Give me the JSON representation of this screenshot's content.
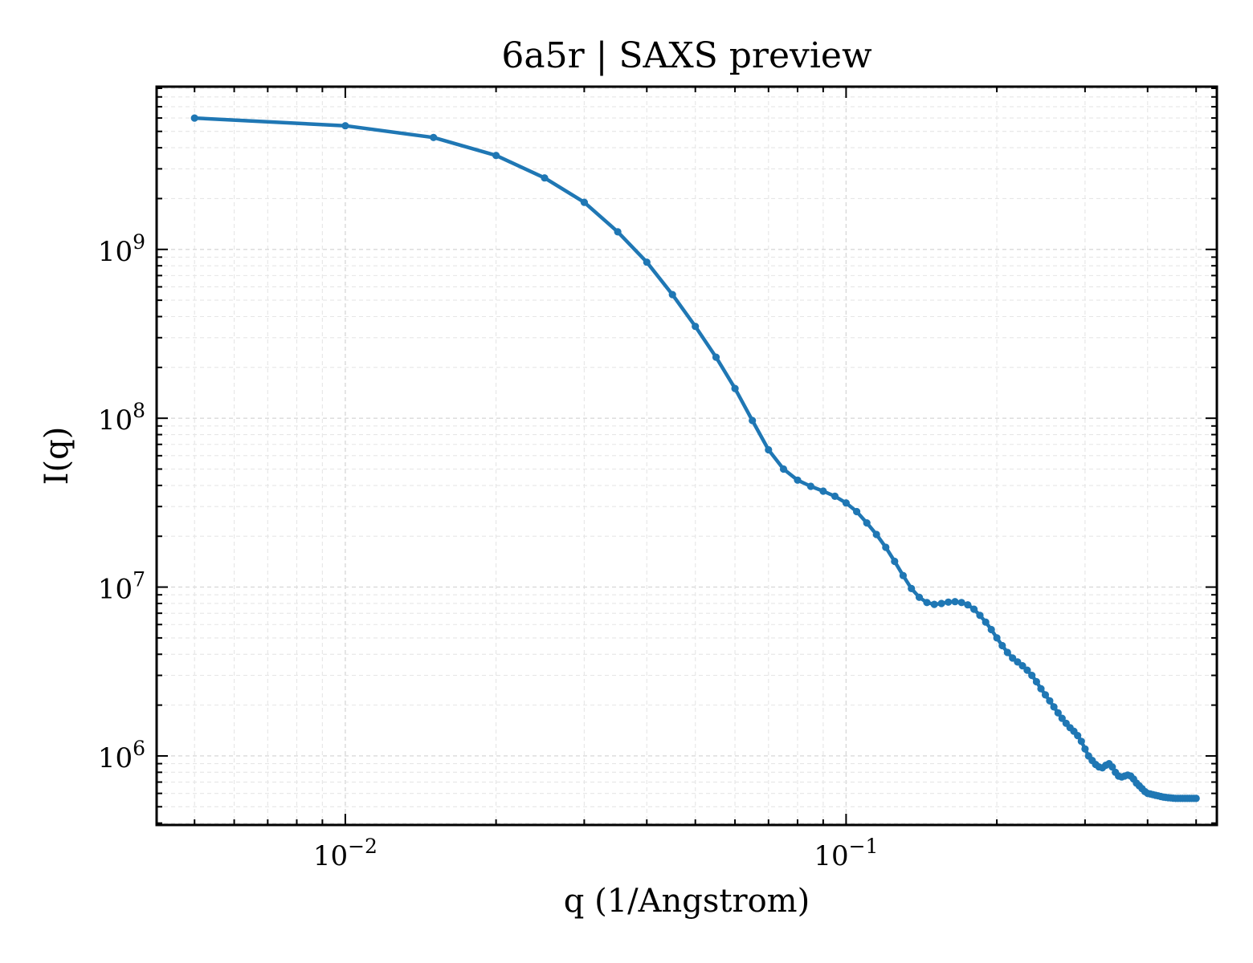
{
  "chart_data": {
    "type": "line",
    "title": "6a5r | SAXS preview",
    "xlabel": "q (1/Angstrom)",
    "ylabel": "I(q)",
    "xscale": "log",
    "yscale": "log",
    "xlim": [
      0.0042,
      0.55
    ],
    "ylim": [
      390000,
      9200000000
    ],
    "grid": true,
    "marker": "circle",
    "color": "#1f77b4",
    "xticks": [
      {
        "value": 0.01,
        "base": "10",
        "exp": "−2"
      },
      {
        "value": 0.1,
        "base": "10",
        "exp": "−1"
      }
    ],
    "yticks": [
      {
        "value": 1000000,
        "base": "10",
        "exp": "6"
      },
      {
        "value": 10000000,
        "base": "10",
        "exp": "7"
      },
      {
        "value": 100000000,
        "base": "10",
        "exp": "8"
      },
      {
        "value": 1000000000,
        "base": "10",
        "exp": "9"
      }
    ],
    "series": [
      {
        "x": [
          0.005,
          0.01,
          0.015,
          0.02,
          0.025,
          0.03,
          0.035,
          0.04,
          0.045,
          0.05,
          0.055,
          0.06,
          0.065,
          0.07,
          0.075,
          0.08,
          0.085,
          0.09,
          0.095,
          0.1,
          0.105,
          0.11,
          0.115,
          0.12,
          0.125,
          0.13,
          0.135,
          0.14,
          0.145,
          0.15,
          0.155,
          0.16,
          0.165,
          0.17,
          0.175,
          0.18,
          0.185,
          0.19,
          0.195,
          0.2,
          0.205,
          0.21,
          0.215,
          0.22,
          0.225,
          0.23,
          0.235,
          0.24,
          0.245,
          0.25,
          0.255,
          0.26,
          0.265,
          0.27,
          0.275,
          0.28,
          0.285,
          0.29,
          0.295,
          0.3,
          0.305,
          0.31,
          0.315,
          0.32,
          0.325,
          0.33,
          0.335,
          0.34,
          0.345,
          0.35,
          0.355,
          0.36,
          0.365,
          0.37,
          0.375,
          0.38,
          0.385,
          0.39,
          0.395,
          0.4,
          0.405,
          0.41,
          0.415,
          0.42,
          0.425,
          0.43,
          0.435,
          0.44,
          0.445,
          0.45,
          0.455,
          0.46,
          0.465,
          0.47,
          0.475,
          0.48,
          0.485,
          0.49,
          0.495,
          0.5
        ],
        "y": [
          6000000000.0,
          5400000000.0,
          4600000000.0,
          3600000000.0,
          2650000000.0,
          1900000000.0,
          1270000000.0,
          840000000.0,
          540000000.0,
          350000000.0,
          230000000.0,
          150000000.0,
          97000000.0,
          65000000.0,
          50000000.0,
          43000000.0,
          39500000.0,
          37000000.0,
          34500000.0,
          31500000.0,
          28000000.0,
          24000000.0,
          20500000.0,
          17200000.0,
          14200000.0,
          11700000.0,
          9800000.0,
          8700000.0,
          8100000.0,
          7900000.0,
          8000000.0,
          8150000.0,
          8200000.0,
          8100000.0,
          7850000.0,
          7400000.0,
          6800000.0,
          6200000.0,
          5600000.0,
          5000000.0,
          4500000.0,
          4100000.0,
          3800000.0,
          3600000.0,
          3420000.0,
          3220000.0,
          3000000.0,
          2750000.0,
          2500000.0,
          2300000.0,
          2120000.0,
          1950000.0,
          1800000.0,
          1670000.0,
          1560000.0,
          1470000.0,
          1400000.0,
          1320000.0,
          1220000.0,
          1100000.0,
          1000000.0,
          940000.0,
          890000.0,
          860000.0,
          850000.0,
          880000.0,
          900000.0,
          860000.0,
          800000.0,
          760000.0,
          750000.0,
          760000.0,
          770000.0,
          760000.0,
          730000.0,
          690000.0,
          665000.0,
          640000.0,
          615000.0,
          600000.0,
          595000.0,
          590000.0,
          585000.0,
          580000.0,
          575000.0,
          570000.0,
          568000.0,
          566000.0,
          564000.0,
          562000.0,
          560000.0,
          560000.0,
          560000.0,
          560000.0,
          560000.0,
          560000.0,
          560000.0,
          560000.0,
          560000.0,
          560000.0
        ]
      }
    ]
  }
}
